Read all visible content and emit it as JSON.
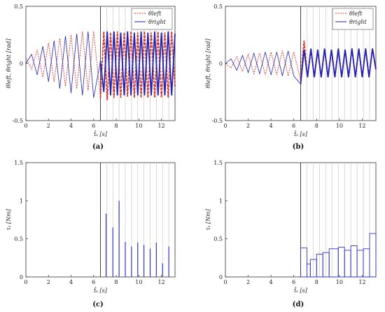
{
  "chart_data": [
    {
      "id": "a",
      "type": "line",
      "panel_label": "(a)",
      "xlabel": "t̂ₛ [s]",
      "ylabel": "θleft, θright [rad]",
      "xlim": [
        0,
        13.2
      ],
      "ylim": [
        -0.5,
        0.5
      ],
      "xticks": [
        0,
        2,
        4,
        6,
        8,
        10,
        12
      ],
      "yticks": [
        -0.5,
        0,
        0.5
      ],
      "ytick_labels": [
        "-0.5",
        "0",
        "0.5"
      ],
      "switch_time": 6.6,
      "event_times": [
        6.6,
        7.15,
        7.7,
        8.25,
        8.8,
        9.35,
        9.9,
        10.45,
        11.0,
        11.55,
        12.1,
        12.65
      ],
      "legend": {
        "position": "top-right",
        "entries": [
          {
            "label": "θleft",
            "style": "dotted",
            "color": "#d9322b"
          },
          {
            "label": "θright",
            "style": "solid",
            "color": "#2222b5"
          }
        ]
      },
      "series": [
        {
          "name": "θleft",
          "color": "#d9322b",
          "style": "dotted",
          "x": [
            0,
            0.5,
            1,
            1.5,
            2,
            2.5,
            3,
            3.5,
            4,
            4.5,
            5,
            5.5,
            6,
            6.6,
            6.9,
            7.2,
            7.5,
            7.8,
            8.1,
            8.4,
            8.7,
            9.0,
            9.3,
            9.6,
            9.9,
            10.2,
            10.5,
            10.8,
            11.1,
            11.4,
            11.7,
            12.0,
            12.3,
            12.6,
            12.9,
            13.2
          ],
          "y": [
            0.05,
            -0.05,
            0.12,
            -0.12,
            0.18,
            -0.16,
            0.22,
            -0.2,
            0.25,
            -0.22,
            0.28,
            -0.24,
            0.28,
            -0.3,
            0.28,
            -0.32,
            0.27,
            -0.3,
            0.28,
            -0.3,
            0.27,
            -0.29,
            0.28,
            -0.3,
            0.27,
            -0.3,
            0.28,
            -0.3,
            0.27,
            -0.3,
            0.28,
            -0.3,
            0.27,
            -0.3,
            0.28,
            -0.2
          ]
        },
        {
          "name": "θright",
          "color": "#2222b5",
          "style": "solid",
          "x": [
            0,
            0.5,
            1,
            1.5,
            2,
            2.5,
            3,
            3.5,
            4,
            4.5,
            5,
            5.5,
            6,
            6.6,
            6.9,
            7.2,
            7.5,
            7.8,
            8.1,
            8.4,
            8.7,
            9.0,
            9.3,
            9.6,
            9.9,
            10.2,
            10.5,
            10.8,
            11.1,
            11.4,
            11.7,
            12.0,
            12.3,
            12.6,
            12.9,
            13.2
          ],
          "y": [
            0.0,
            0.08,
            -0.1,
            0.15,
            -0.16,
            0.2,
            -0.22,
            0.24,
            -0.26,
            0.26,
            -0.28,
            0.28,
            -0.3,
            0.02,
            -0.25,
            0.28,
            -0.28,
            0.28,
            -0.28,
            0.27,
            -0.28,
            0.28,
            -0.28,
            0.27,
            -0.28,
            0.28,
            -0.28,
            0.27,
            -0.28,
            0.28,
            -0.28,
            0.27,
            -0.28,
            0.28,
            -0.28,
            0.26
          ]
        }
      ]
    },
    {
      "id": "b",
      "type": "line",
      "panel_label": "(b)",
      "xlabel": "t̂ₛ [s]",
      "ylabel": "θleft, θright [rad]",
      "xlim": [
        0,
        13.2
      ],
      "ylim": [
        -0.5,
        0.5
      ],
      "xticks": [
        0,
        2,
        4,
        6,
        8,
        10,
        12
      ],
      "yticks": [
        -0.5,
        0,
        0.5
      ],
      "ytick_labels": [
        "-0.5",
        "0",
        "0.5"
      ],
      "switch_time": 6.6,
      "event_times": [
        6.6,
        7.15,
        7.7,
        8.25,
        8.8,
        9.35,
        9.9,
        10.45,
        11.0,
        11.55,
        12.1,
        12.65
      ],
      "legend": {
        "position": "top-right",
        "entries": [
          {
            "label": "θleft",
            "style": "dotted",
            "color": "#d9322b"
          },
          {
            "label": "θright",
            "style": "solid",
            "color": "#2222b5"
          }
        ]
      },
      "series": [
        {
          "name": "θleft",
          "color": "#d9322b",
          "style": "dotted",
          "x": [
            0,
            0.5,
            1,
            1.5,
            2,
            2.5,
            3,
            3.5,
            4,
            4.5,
            5,
            5.5,
            6,
            6.6,
            6.9,
            7.2,
            7.5,
            7.8,
            8.1,
            8.4,
            8.7,
            9.0,
            9.3,
            9.6,
            9.9,
            10.2,
            10.5,
            10.8,
            11.1,
            11.4,
            11.7,
            12.0,
            12.3,
            12.6,
            12.9,
            13.2
          ],
          "y": [
            0.0,
            -0.04,
            0.06,
            -0.07,
            0.08,
            -0.09,
            0.09,
            -0.1,
            0.1,
            -0.1,
            0.11,
            -0.11,
            0.1,
            -0.15,
            0.2,
            -0.12,
            0.12,
            -0.12,
            0.12,
            -0.12,
            0.13,
            -0.12,
            0.12,
            -0.12,
            0.13,
            -0.12,
            0.12,
            -0.12,
            0.13,
            -0.12,
            0.13,
            -0.12,
            0.13,
            -0.12,
            0.13,
            -0.06
          ]
        },
        {
          "name": "θright",
          "color": "#2222b5",
          "style": "solid",
          "x": [
            0,
            0.5,
            1,
            1.5,
            2,
            2.5,
            3,
            3.5,
            4,
            4.5,
            5,
            5.5,
            6,
            6.6,
            6.9,
            7.2,
            7.5,
            7.8,
            8.1,
            8.4,
            8.7,
            9.0,
            9.3,
            9.6,
            9.9,
            10.2,
            10.5,
            10.8,
            11.1,
            11.4,
            11.7,
            12.0,
            12.3,
            12.6,
            12.9,
            13.2
          ],
          "y": [
            0.0,
            0.04,
            -0.06,
            0.07,
            -0.08,
            0.09,
            -0.09,
            0.1,
            -0.1,
            0.1,
            -0.11,
            0.11,
            -0.11,
            -0.18,
            0.12,
            -0.12,
            0.13,
            -0.12,
            0.12,
            -0.12,
            0.13,
            -0.12,
            0.12,
            -0.12,
            0.13,
            -0.12,
            0.12,
            -0.12,
            0.13,
            -0.12,
            0.13,
            -0.12,
            0.13,
            -0.12,
            0.13,
            -0.05
          ]
        }
      ]
    },
    {
      "id": "c",
      "type": "bar",
      "panel_label": "(c)",
      "xlabel": "t̂ₛ [s]",
      "ylabel": "τₛ [Nm]",
      "xlim": [
        0,
        13.2
      ],
      "ylim": [
        0,
        1.5
      ],
      "xticks": [
        0,
        2,
        4,
        6,
        8,
        10,
        12
      ],
      "yticks": [
        0,
        0.5,
        1,
        1.5
      ],
      "ytick_labels": [
        "0",
        "0.5",
        "1",
        "1.5"
      ],
      "switch_time": 6.6,
      "event_times": [
        6.6,
        7.15,
        7.7,
        8.25,
        8.8,
        9.35,
        9.9,
        10.45,
        11.0,
        11.55,
        12.1,
        12.65
      ],
      "bar_color": "#3333cc",
      "bars": [
        {
          "t": 7.1,
          "value": 0.83
        },
        {
          "t": 7.7,
          "value": 0.65
        },
        {
          "t": 8.25,
          "value": 1.0
        },
        {
          "t": 8.8,
          "value": 0.46
        },
        {
          "t": 9.35,
          "value": 0.4
        },
        {
          "t": 9.9,
          "value": 0.45
        },
        {
          "t": 10.45,
          "value": 0.42
        },
        {
          "t": 11.0,
          "value": 0.37
        },
        {
          "t": 11.55,
          "value": 0.45
        },
        {
          "t": 12.1,
          "value": 0.18
        },
        {
          "t": 12.65,
          "value": 0.4
        }
      ]
    },
    {
      "id": "d",
      "type": "bar",
      "panel_label": "(d)",
      "xlabel": "t̂ₛ [s]",
      "ylabel": "τₛ [Nm]",
      "xlim": [
        0,
        13.2
      ],
      "ylim": [
        0,
        1.5
      ],
      "xticks": [
        0,
        2,
        4,
        6,
        8,
        10,
        12
      ],
      "yticks": [
        0,
        0.5,
        1,
        1.5
      ],
      "ytick_labels": [
        "0",
        "0.5",
        "1",
        "1.5"
      ],
      "switch_time": 6.6,
      "event_times": [
        6.6,
        7.15,
        7.7,
        8.25,
        8.8,
        9.35,
        9.9,
        10.45,
        11.0,
        11.55,
        12.1,
        12.65
      ],
      "bar_color": "#3333cc",
      "steps": [
        {
          "t0": 6.6,
          "t1": 7.15,
          "value": 0.38
        },
        {
          "t0": 7.15,
          "t1": 7.45,
          "value": 0.17
        },
        {
          "t0": 7.45,
          "t1": 8.0,
          "value": 0.23
        },
        {
          "t0": 8.0,
          "t1": 8.55,
          "value": 0.3
        },
        {
          "t0": 8.55,
          "t1": 9.1,
          "value": 0.32
        },
        {
          "t0": 9.1,
          "t1": 9.9,
          "value": 0.37
        },
        {
          "t0": 9.9,
          "t1": 10.45,
          "value": 0.39
        },
        {
          "t0": 10.45,
          "t1": 11.0,
          "value": 0.35
        },
        {
          "t0": 11.0,
          "t1": 11.55,
          "value": 0.41
        },
        {
          "t0": 11.55,
          "t1": 12.1,
          "value": 0.35
        },
        {
          "t0": 12.1,
          "t1": 12.65,
          "value": 0.37
        },
        {
          "t0": 12.65,
          "t1": 13.2,
          "value": 0.57
        }
      ]
    }
  ]
}
